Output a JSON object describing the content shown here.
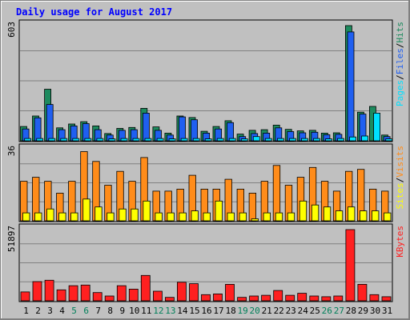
{
  "chart_data": {
    "type": "bar",
    "title": "Daily usage for August 2017",
    "categories": [
      "1",
      "2",
      "3",
      "4",
      "5",
      "6",
      "7",
      "8",
      "9",
      "10",
      "11",
      "12",
      "13",
      "14",
      "15",
      "16",
      "17",
      "18",
      "19",
      "20",
      "21",
      "22",
      "23",
      "24",
      "25",
      "26",
      "27",
      "28",
      "29",
      "30",
      "31"
    ],
    "weekend_days": [
      "5",
      "6",
      "12",
      "13",
      "19",
      "20",
      "26",
      "27"
    ],
    "panels": [
      {
        "name": "hits-files-pages",
        "ymax_label": "603",
        "ymax": 603,
        "side_label_parts": [
          "Pages",
          "/",
          "Files",
          "/",
          "Hits"
        ],
        "series": [
          {
            "name": "Hits",
            "color": "#1d8a5e",
            "values": [
              75,
              130,
              270,
              68,
              88,
              100,
              78,
              38,
              65,
              70,
              170,
              73,
              40,
              130,
              122,
              50,
              75,
              105,
              35,
              55,
              58,
              82,
              60,
              52,
              55,
              40,
              42,
              603,
              150,
              180,
              30
            ]
          },
          {
            "name": "Files",
            "color": "#1f5ff0",
            "values": [
              62,
              120,
              190,
              58,
              78,
              90,
              58,
              30,
              55,
              58,
              145,
              55,
              30,
              125,
              110,
              40,
              62,
              95,
              22,
              38,
              40,
              68,
              48,
              42,
              45,
              32,
              34,
              570,
              140,
              0,
              22
            ]
          },
          {
            "name": "Pages",
            "color": "#00e0ff",
            "values": [
              12,
              12,
              12,
              12,
              12,
              12,
              12,
              10,
              12,
              12,
              12,
              12,
              10,
              12,
              12,
              10,
              12,
              12,
              10,
              22,
              12,
              12,
              12,
              12,
              12,
              10,
              12,
              20,
              25,
              145,
              10
            ]
          }
        ]
      },
      {
        "name": "visits-sites",
        "ymax_label": "36",
        "ymax": 36,
        "side_label_parts": [
          "Sites",
          "/",
          "Visits"
        ],
        "series": [
          {
            "name": "Visits",
            "color": "#ff8c1a",
            "values": [
              20,
              22,
              20,
              14,
              20,
              35,
              30,
              18,
              25,
              20,
              32,
              15,
              15,
              16,
              23,
              16,
              16,
              21,
              16,
              14,
              20,
              28,
              18,
              22,
              27,
              20,
              15,
              25,
              26,
              16,
              15
            ]
          },
          {
            "name": "Sites",
            "color": "#ffff00",
            "values": [
              4,
              4,
              6,
              4,
              4,
              11,
              7,
              4,
              6,
              6,
              10,
              4,
              4,
              4,
              5,
              4,
              10,
              4,
              4,
              1,
              4,
              4,
              4,
              10,
              8,
              7,
              5,
              7,
              5,
              5,
              4
            ]
          }
        ]
      },
      {
        "name": "kbytes",
        "ymax_label": "51897",
        "ymax": 51897,
        "side_label_parts": [
          "KBytes"
        ],
        "series": [
          {
            "name": "KBytes",
            "color": "#ff2020",
            "values": [
              6500,
              14000,
              15000,
              8000,
              11000,
              11500,
              6000,
              3500,
              11000,
              8500,
              18500,
              7000,
              2500,
              13500,
              12500,
              4500,
              5000,
              12000,
              2500,
              3500,
              4000,
              7500,
              4000,
              5500,
              3500,
              3000,
              3500,
              51897,
              12000,
              4500,
              3000
            ]
          }
        ]
      }
    ]
  },
  "colors": {
    "background": "#c0c0c0",
    "plot_background": "#c0c0c0",
    "title": "#0000ff",
    "weekday_label": "#000000",
    "weekend_label": "#00805a",
    "grid": "#808080",
    "hits": "#1d8a5e",
    "files": "#1f5ff0",
    "pages": "#00e0ff",
    "visits": "#ff8c1a",
    "sites": "#ffff00",
    "kbytes": "#ff2020",
    "side_label_separator": "#000000"
  }
}
